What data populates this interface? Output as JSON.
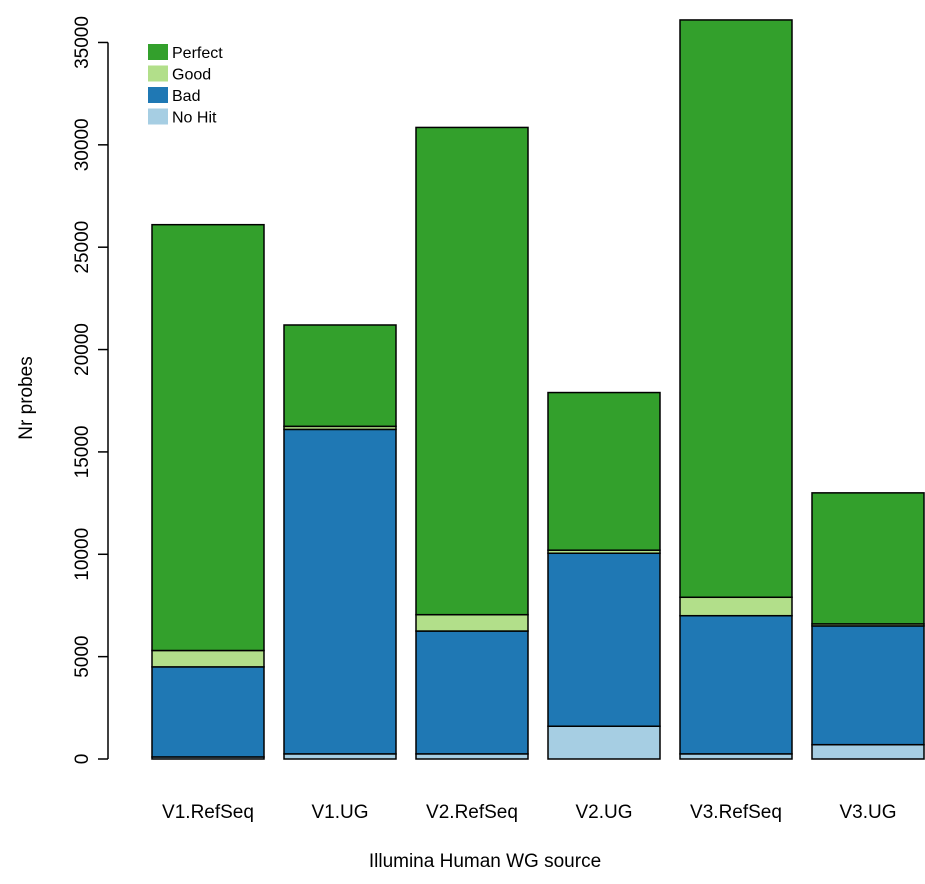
{
  "chart_data": {
    "type": "bar",
    "stacked": true,
    "xlabel": "Illumina Human WG source",
    "ylabel": "Nr probes",
    "ylim": [
      0,
      36000
    ],
    "yticks": [
      0,
      5000,
      10000,
      15000,
      20000,
      25000,
      30000,
      35000
    ],
    "categories": [
      "V1.RefSeq",
      "V1.UG",
      "V2.RefSeq",
      "V2.UG",
      "V3.RefSeq",
      "V3.UG"
    ],
    "legend_position": "top-left",
    "series": [
      {
        "name": "No Hit",
        "color": "#a6cee3",
        "values": [
          100,
          250,
          250,
          1600,
          250,
          700
        ]
      },
      {
        "name": "Bad",
        "color": "#1f78b4",
        "values": [
          4400,
          15850,
          6000,
          8450,
          6750,
          5800
        ]
      },
      {
        "name": "Good",
        "color": "#b2df8a",
        "values": [
          800,
          150,
          800,
          150,
          900,
          100
        ]
      },
      {
        "name": "Perfect",
        "color": "#33a02c",
        "values": [
          20800,
          4950,
          23800,
          7700,
          28200,
          6400
        ]
      }
    ],
    "legend_order": [
      "Perfect",
      "Good",
      "Bad",
      "No Hit"
    ]
  }
}
